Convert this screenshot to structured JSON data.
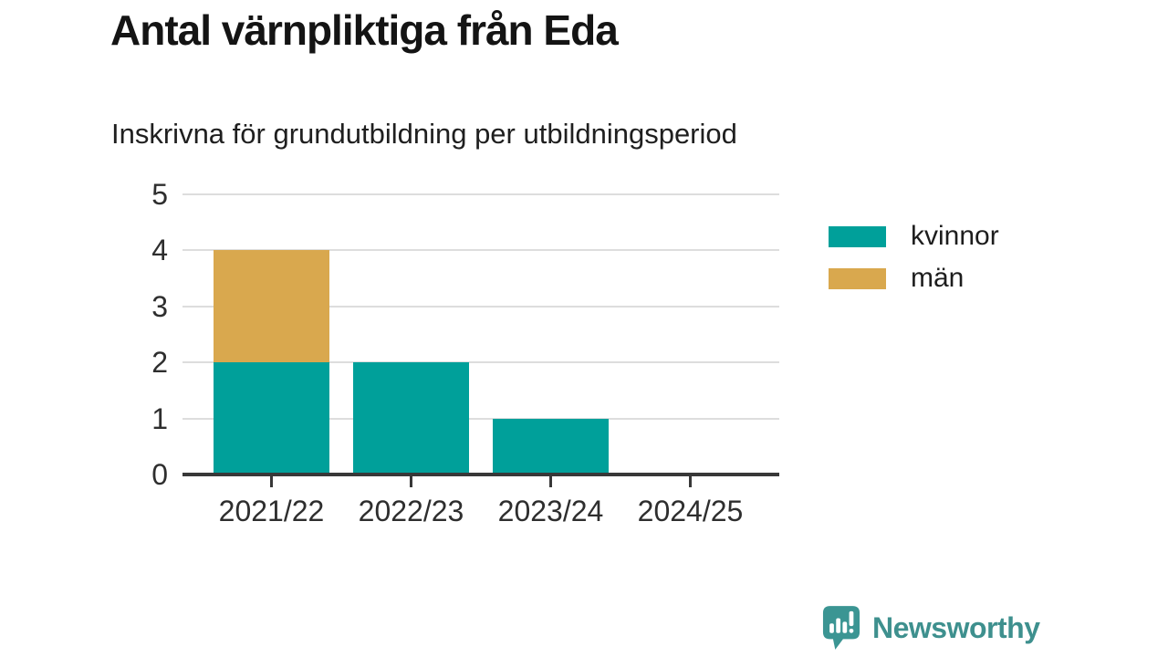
{
  "header": {
    "title": "Antal värnpliktiga från Eda",
    "subtitle": "Inskrivna för grundutbildning per utbildningsperiod"
  },
  "chart_data": {
    "type": "bar",
    "stacked": true,
    "title": "Antal värnpliktiga från Eda",
    "subtitle": "Inskrivna för grundutbildning per utbildningsperiod",
    "categories": [
      "2021/22",
      "2022/23",
      "2023/24",
      "2024/25"
    ],
    "series": [
      {
        "name": "kvinnor",
        "color": "#00a09a",
        "values": [
          2,
          2,
          1,
          0
        ]
      },
      {
        "name": "män",
        "color": "#d9a84e",
        "values": [
          2,
          0,
          0,
          0
        ]
      }
    ],
    "xlabel": "",
    "ylabel": "",
    "ylim": [
      0,
      5
    ],
    "yticks": [
      0,
      1,
      2,
      3,
      4,
      5
    ],
    "grid": "horizontal",
    "legend_position": "right"
  },
  "legend": {
    "entries": [
      {
        "label": "kvinnor",
        "color": "#00a09a"
      },
      {
        "label": "män",
        "color": "#d9a84e"
      }
    ]
  },
  "footer": {
    "brand": "Newsworthy"
  },
  "colors": {
    "bar_teal": "#00a09a",
    "bar_gold": "#d9a84e",
    "brand_teal": "#3e908e",
    "logo_bubble": "#3b9593",
    "axis": "#383838",
    "gridline": "#dddddd",
    "text_dark": "#141414"
  }
}
